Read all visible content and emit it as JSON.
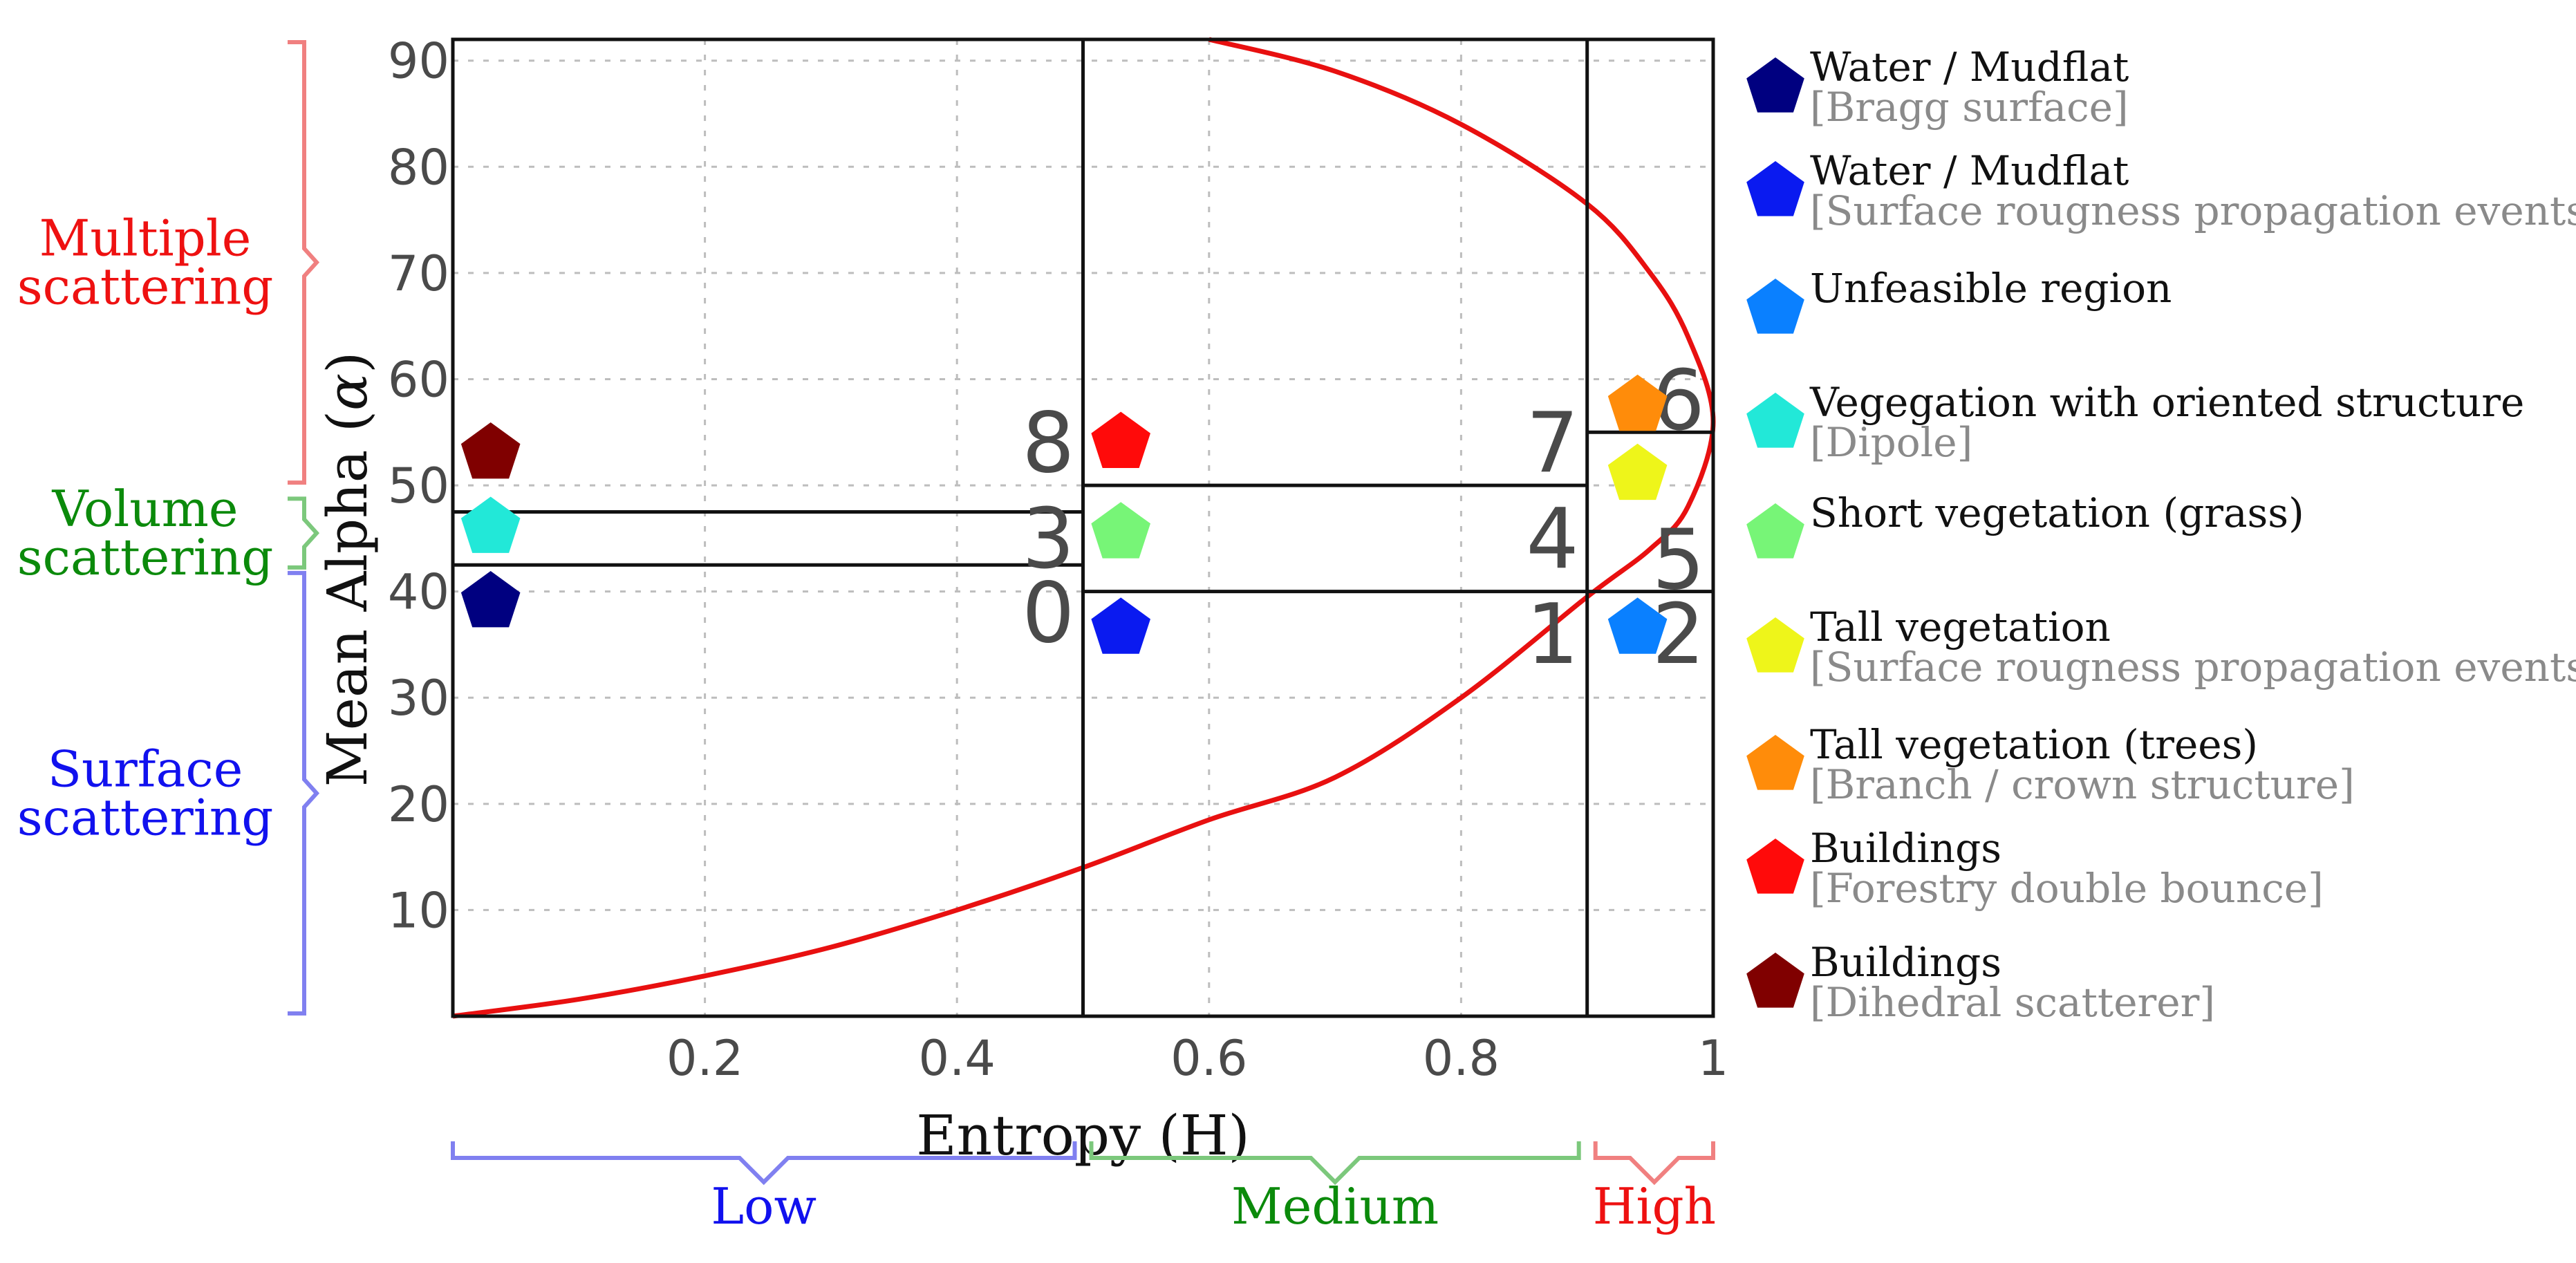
{
  "chart_data": {
    "type": "scatter",
    "title": "",
    "xlabel": "Entropy (H)",
    "ylabel_prefix": "Mean Alpha (",
    "ylabel_symbol": "α",
    "ylabel_suffix": ")",
    "xlim": [
      0,
      1
    ],
    "ylim": [
      0,
      92
    ],
    "x_ticks": [
      {
        "value": 0.2,
        "label": "0.2"
      },
      {
        "value": 0.4,
        "label": "0.4"
      },
      {
        "value": 0.6,
        "label": "0.6"
      },
      {
        "value": 0.8,
        "label": "0.8"
      },
      {
        "value": 1.0,
        "label": "1"
      }
    ],
    "y_ticks": [
      {
        "value": 10,
        "label": "10"
      },
      {
        "value": 20,
        "label": "20"
      },
      {
        "value": 30,
        "label": "30"
      },
      {
        "value": 40,
        "label": "40"
      },
      {
        "value": 50,
        "label": "50"
      },
      {
        "value": 60,
        "label": "60"
      },
      {
        "value": 70,
        "label": "70"
      },
      {
        "value": 80,
        "label": "80"
      },
      {
        "value": 90,
        "label": "90"
      }
    ],
    "grid": true,
    "boundary_curve_color": "#e81010",
    "zone_boundaries": {
      "entropy_splits": [
        0.5,
        0.9
      ],
      "low_alpha_splits": [
        42.5,
        47.5
      ],
      "medium_alpha_splits": [
        40,
        50
      ],
      "high_alpha_split": [
        40,
        55
      ]
    },
    "zones": [
      {
        "id": "z0",
        "label": "0",
        "H": 0.5,
        "alpha": 38,
        "align": "right"
      },
      {
        "id": "z3",
        "label": "3",
        "H": 0.5,
        "alpha": 45,
        "align": "right"
      },
      {
        "id": "z8",
        "label": "8",
        "H": 0.5,
        "alpha": 54,
        "align": "right"
      },
      {
        "id": "z1",
        "label": "1",
        "H": 0.9,
        "alpha": 36,
        "align": "right"
      },
      {
        "id": "z4",
        "label": "4",
        "H": 0.9,
        "alpha": 45,
        "align": "right"
      },
      {
        "id": "z7",
        "label": "7",
        "H": 0.9,
        "alpha": 54,
        "align": "right"
      },
      {
        "id": "z2",
        "label": "2",
        "H": 1.0,
        "alpha": 36,
        "align": "right"
      },
      {
        "id": "z5",
        "label": "5",
        "H": 1.0,
        "alpha": 43,
        "align": "right"
      },
      {
        "id": "z6",
        "label": "6",
        "H": 1.0,
        "alpha": 58,
        "align": "right"
      }
    ],
    "markers": [
      {
        "class": "water-bragg",
        "H": 0.03,
        "alpha": 39,
        "color": "#000080"
      },
      {
        "class": "vegetation-dipole",
        "H": 0.03,
        "alpha": 46,
        "color": "#22e8d8"
      },
      {
        "class": "buildings-dihedral",
        "H": 0.03,
        "alpha": 53,
        "color": "#800000"
      },
      {
        "class": "water-rough",
        "H": 0.53,
        "alpha": 36.5,
        "color": "#0a1af0"
      },
      {
        "class": "short-vegetation",
        "H": 0.53,
        "alpha": 45.5,
        "color": "#77f577"
      },
      {
        "class": "buildings-forestry",
        "H": 0.53,
        "alpha": 54,
        "color": "#ff0a0a"
      },
      {
        "class": "unfeasible",
        "H": 0.94,
        "alpha": 36.5,
        "color": "#0a80ff"
      },
      {
        "class": "tall-vegetation",
        "H": 0.94,
        "alpha": 51,
        "color": "#eef51a"
      },
      {
        "class": "tall-vegetation-trees",
        "H": 0.94,
        "alpha": 57.5,
        "color": "#ff8c0a"
      }
    ],
    "scattering_braces": [
      {
        "label_line1": "Multiple",
        "label_line2": "scattering",
        "from": 50,
        "to": 92,
        "color": "#ee1111",
        "brace_color": "#f08080"
      },
      {
        "label_line1": "Volume",
        "label_line2": "scattering",
        "from": 42,
        "to": 49,
        "color": "#0b8a0b",
        "brace_color": "#7cc87c"
      },
      {
        "label_line1": "Surface",
        "label_line2": "scattering",
        "from": 0,
        "to": 42,
        "color": "#1111ee",
        "brace_color": "#8080f0"
      }
    ],
    "entropy_braces": [
      {
        "label": "Low",
        "from": 0,
        "to": 0.5,
        "color": "#1111ee",
        "brace_color": "#8080f0"
      },
      {
        "label": "Medium",
        "from": 0.5,
        "to": 0.9,
        "color": "#0b8a0b",
        "brace_color": "#7cc87c"
      },
      {
        "label": "High",
        "from": 0.9,
        "to": 1.0,
        "color": "#ee1111",
        "brace_color": "#f08080"
      }
    ]
  },
  "legend": {
    "items": [
      {
        "name": "Water / Mudflat",
        "desc": "[Bragg surface]",
        "color": "#000080"
      },
      {
        "name": "Water / Mudflat",
        "desc": "[Surface rougness propagation events]",
        "color": "#0a1af0"
      },
      {
        "name": "Unfeasible region",
        "desc": "",
        "color": "#0a80ff"
      },
      {
        "name": "Vegegation with oriented structure",
        "desc": "[Dipole]",
        "color": "#22e8d8"
      },
      {
        "name": "Short vegetation (grass)",
        "desc": "",
        "color": "#77f577"
      },
      {
        "name": "Tall vegetation",
        "desc": "[Surface rougness propagation events]",
        "color": "#eef51a"
      },
      {
        "name": "Tall vegetation (trees)",
        "desc": "[Branch / crown structure]",
        "color": "#ff8c0a"
      },
      {
        "name": "Buildings",
        "desc": "[Forestry double bounce]",
        "color": "#ff0a0a"
      },
      {
        "name": "Buildings",
        "desc": "[Dihedral scatterer]",
        "color": "#800000"
      }
    ]
  }
}
